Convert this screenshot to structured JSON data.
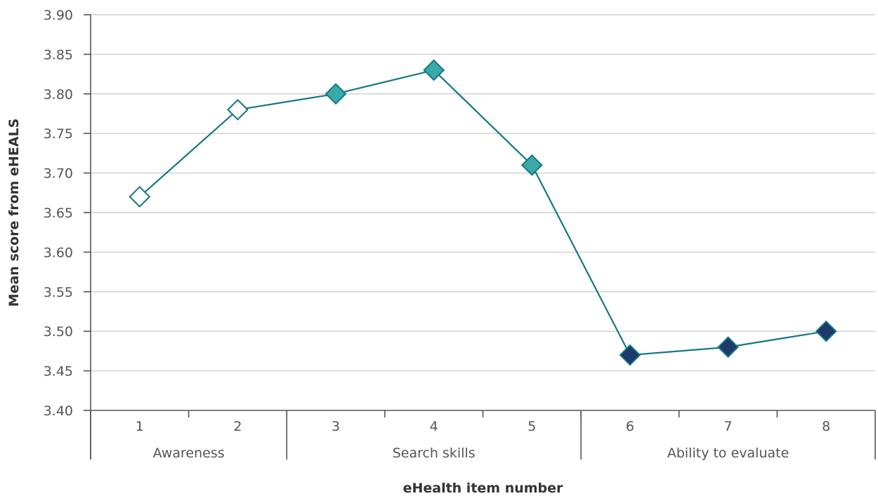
{
  "chart_data": {
    "type": "line",
    "xlabel": "eHealth item number",
    "ylabel": "Mean score from eHEALS",
    "ylim": [
      3.4,
      3.9
    ],
    "yticks": [
      "3.40",
      "3.45",
      "3.50",
      "3.55",
      "3.60",
      "3.65",
      "3.70",
      "3.75",
      "3.80",
      "3.85",
      "3.90"
    ],
    "categories": [
      "1",
      "2",
      "3",
      "4",
      "5",
      "6",
      "7",
      "8"
    ],
    "groups": [
      {
        "label": "Awareness",
        "items": [
          "1",
          "2"
        ]
      },
      {
        "label": "Search skills",
        "items": [
          "3",
          "4",
          "5"
        ]
      },
      {
        "label": "Ability to evaluate",
        "items": [
          "6",
          "7",
          "8"
        ]
      }
    ],
    "series": [
      {
        "values": [
          3.67,
          3.78,
          3.8,
          3.83,
          3.71,
          3.47,
          3.48,
          3.5
        ]
      }
    ],
    "marker_colors": [
      "#ffffff",
      "#ffffff",
      "#3aa9a9",
      "#3aa9a9",
      "#3aa9a9",
      "#1c3a6e",
      "#1c3a6e",
      "#1c3a6e"
    ],
    "line_color": "#147782",
    "grid": true,
    "legend": "none"
  }
}
